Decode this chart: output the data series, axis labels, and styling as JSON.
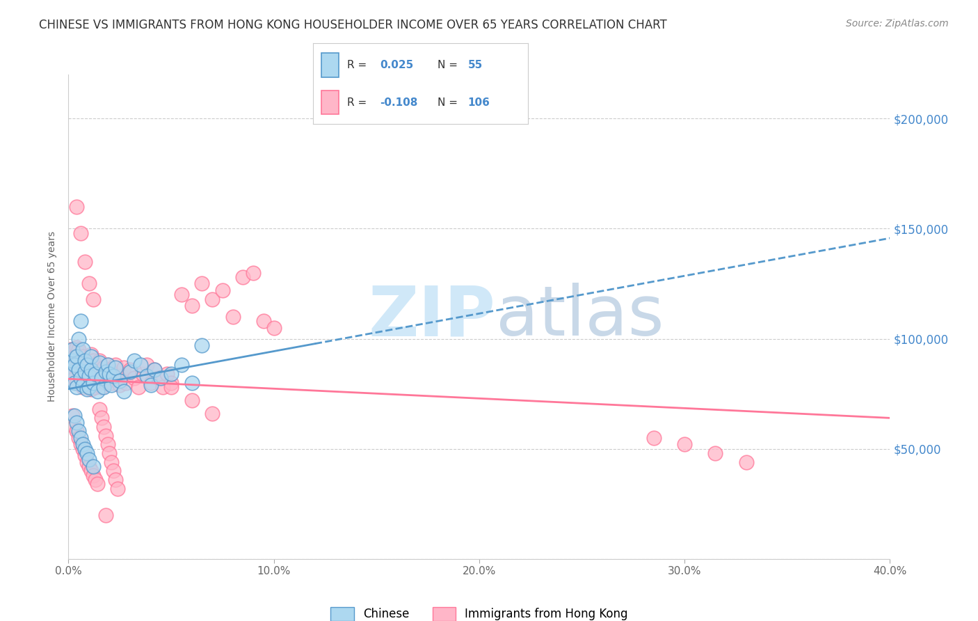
{
  "title": "CHINESE VS IMMIGRANTS FROM HONG KONG HOUSEHOLDER INCOME OVER 65 YEARS CORRELATION CHART",
  "source": "Source: ZipAtlas.com",
  "ylabel": "Householder Income Over 65 years",
  "xlim": [
    0.0,
    0.4
  ],
  "ylim": [
    0,
    220000
  ],
  "yticks": [
    0,
    50000,
    100000,
    150000,
    200000
  ],
  "ytick_labels": [
    "",
    "$50,000",
    "$100,000",
    "$150,000",
    "$200,000"
  ],
  "xticks": [
    0.0,
    0.1,
    0.2,
    0.3,
    0.4
  ],
  "xtick_labels": [
    "0.0%",
    "10.0%",
    "20.0%",
    "30.0%",
    "40.0%"
  ],
  "color_chinese": "#ADD8F0",
  "color_hk": "#FFB6C8",
  "color_chinese_edge": "#5599CC",
  "color_hk_edge": "#FF7799",
  "color_chinese_line": "#5599CC",
  "color_hk_line": "#FF7799",
  "color_tick": "#4488CC",
  "background_color": "#FFFFFF",
  "grid_color": "#CCCCCC",
  "watermark_zip_color": "#D0E8F8",
  "watermark_atlas_color": "#C8D8E8",
  "chinese_x": [
    0.001,
    0.002,
    0.002,
    0.003,
    0.003,
    0.004,
    0.004,
    0.005,
    0.005,
    0.006,
    0.006,
    0.007,
    0.007,
    0.008,
    0.008,
    0.009,
    0.009,
    0.01,
    0.01,
    0.011,
    0.011,
    0.012,
    0.013,
    0.014,
    0.015,
    0.016,
    0.017,
    0.018,
    0.019,
    0.02,
    0.021,
    0.022,
    0.023,
    0.025,
    0.027,
    0.03,
    0.032,
    0.035,
    0.038,
    0.04,
    0.042,
    0.045,
    0.05,
    0.055,
    0.06,
    0.003,
    0.004,
    0.005,
    0.006,
    0.007,
    0.008,
    0.009,
    0.01,
    0.012,
    0.065
  ],
  "chinese_y": [
    85000,
    90000,
    95000,
    88000,
    80000,
    92000,
    78000,
    86000,
    100000,
    82000,
    108000,
    79000,
    95000,
    85000,
    90000,
    77000,
    88000,
    83000,
    78000,
    86000,
    92000,
    80000,
    84000,
    76000,
    89000,
    82000,
    78000,
    85000,
    88000,
    84000,
    79000,
    83000,
    87000,
    81000,
    76000,
    85000,
    90000,
    88000,
    83000,
    79000,
    86000,
    82000,
    84000,
    88000,
    80000,
    65000,
    62000,
    58000,
    55000,
    52000,
    50000,
    48000,
    45000,
    42000,
    97000
  ],
  "hk_x": [
    0.001,
    0.001,
    0.002,
    0.002,
    0.003,
    0.003,
    0.004,
    0.004,
    0.005,
    0.005,
    0.005,
    0.006,
    0.006,
    0.007,
    0.007,
    0.008,
    0.008,
    0.009,
    0.009,
    0.01,
    0.01,
    0.011,
    0.011,
    0.012,
    0.012,
    0.013,
    0.013,
    0.014,
    0.014,
    0.015,
    0.015,
    0.016,
    0.016,
    0.017,
    0.017,
    0.018,
    0.018,
    0.019,
    0.019,
    0.02,
    0.02,
    0.021,
    0.022,
    0.023,
    0.024,
    0.025,
    0.026,
    0.027,
    0.028,
    0.03,
    0.032,
    0.034,
    0.036,
    0.038,
    0.04,
    0.042,
    0.044,
    0.046,
    0.048,
    0.05,
    0.055,
    0.06,
    0.065,
    0.07,
    0.075,
    0.08,
    0.085,
    0.09,
    0.095,
    0.1,
    0.002,
    0.003,
    0.004,
    0.005,
    0.006,
    0.007,
    0.008,
    0.009,
    0.01,
    0.011,
    0.012,
    0.013,
    0.014,
    0.015,
    0.016,
    0.017,
    0.018,
    0.019,
    0.02,
    0.021,
    0.022,
    0.023,
    0.024,
    0.004,
    0.006,
    0.008,
    0.01,
    0.012,
    0.285,
    0.3,
    0.315,
    0.33,
    0.05,
    0.06,
    0.07,
    0.018
  ],
  "hk_y": [
    90000,
    95000,
    88000,
    85000,
    92000,
    82000,
    96000,
    80000,
    86000,
    90000,
    95000,
    83000,
    88000,
    92000,
    78000,
    86000,
    89000,
    80000,
    84000,
    88000,
    82000,
    93000,
    77000,
    86000,
    90000,
    83000,
    78000,
    87000,
    81000,
    85000,
    90000,
    83000,
    78000,
    87000,
    82000,
    80000,
    85000,
    88000,
    83000,
    82000,
    86000,
    80000,
    84000,
    88000,
    82000,
    79000,
    83000,
    87000,
    80000,
    86000,
    82000,
    78000,
    84000,
    88000,
    80000,
    86000,
    82000,
    78000,
    84000,
    80000,
    120000,
    115000,
    125000,
    118000,
    122000,
    110000,
    128000,
    130000,
    108000,
    105000,
    65000,
    60000,
    58000,
    55000,
    52000,
    50000,
    47000,
    44000,
    42000,
    40000,
    38000,
    36000,
    34000,
    68000,
    64000,
    60000,
    56000,
    52000,
    48000,
    44000,
    40000,
    36000,
    32000,
    160000,
    148000,
    135000,
    125000,
    118000,
    55000,
    52000,
    48000,
    44000,
    78000,
    72000,
    66000,
    20000
  ]
}
